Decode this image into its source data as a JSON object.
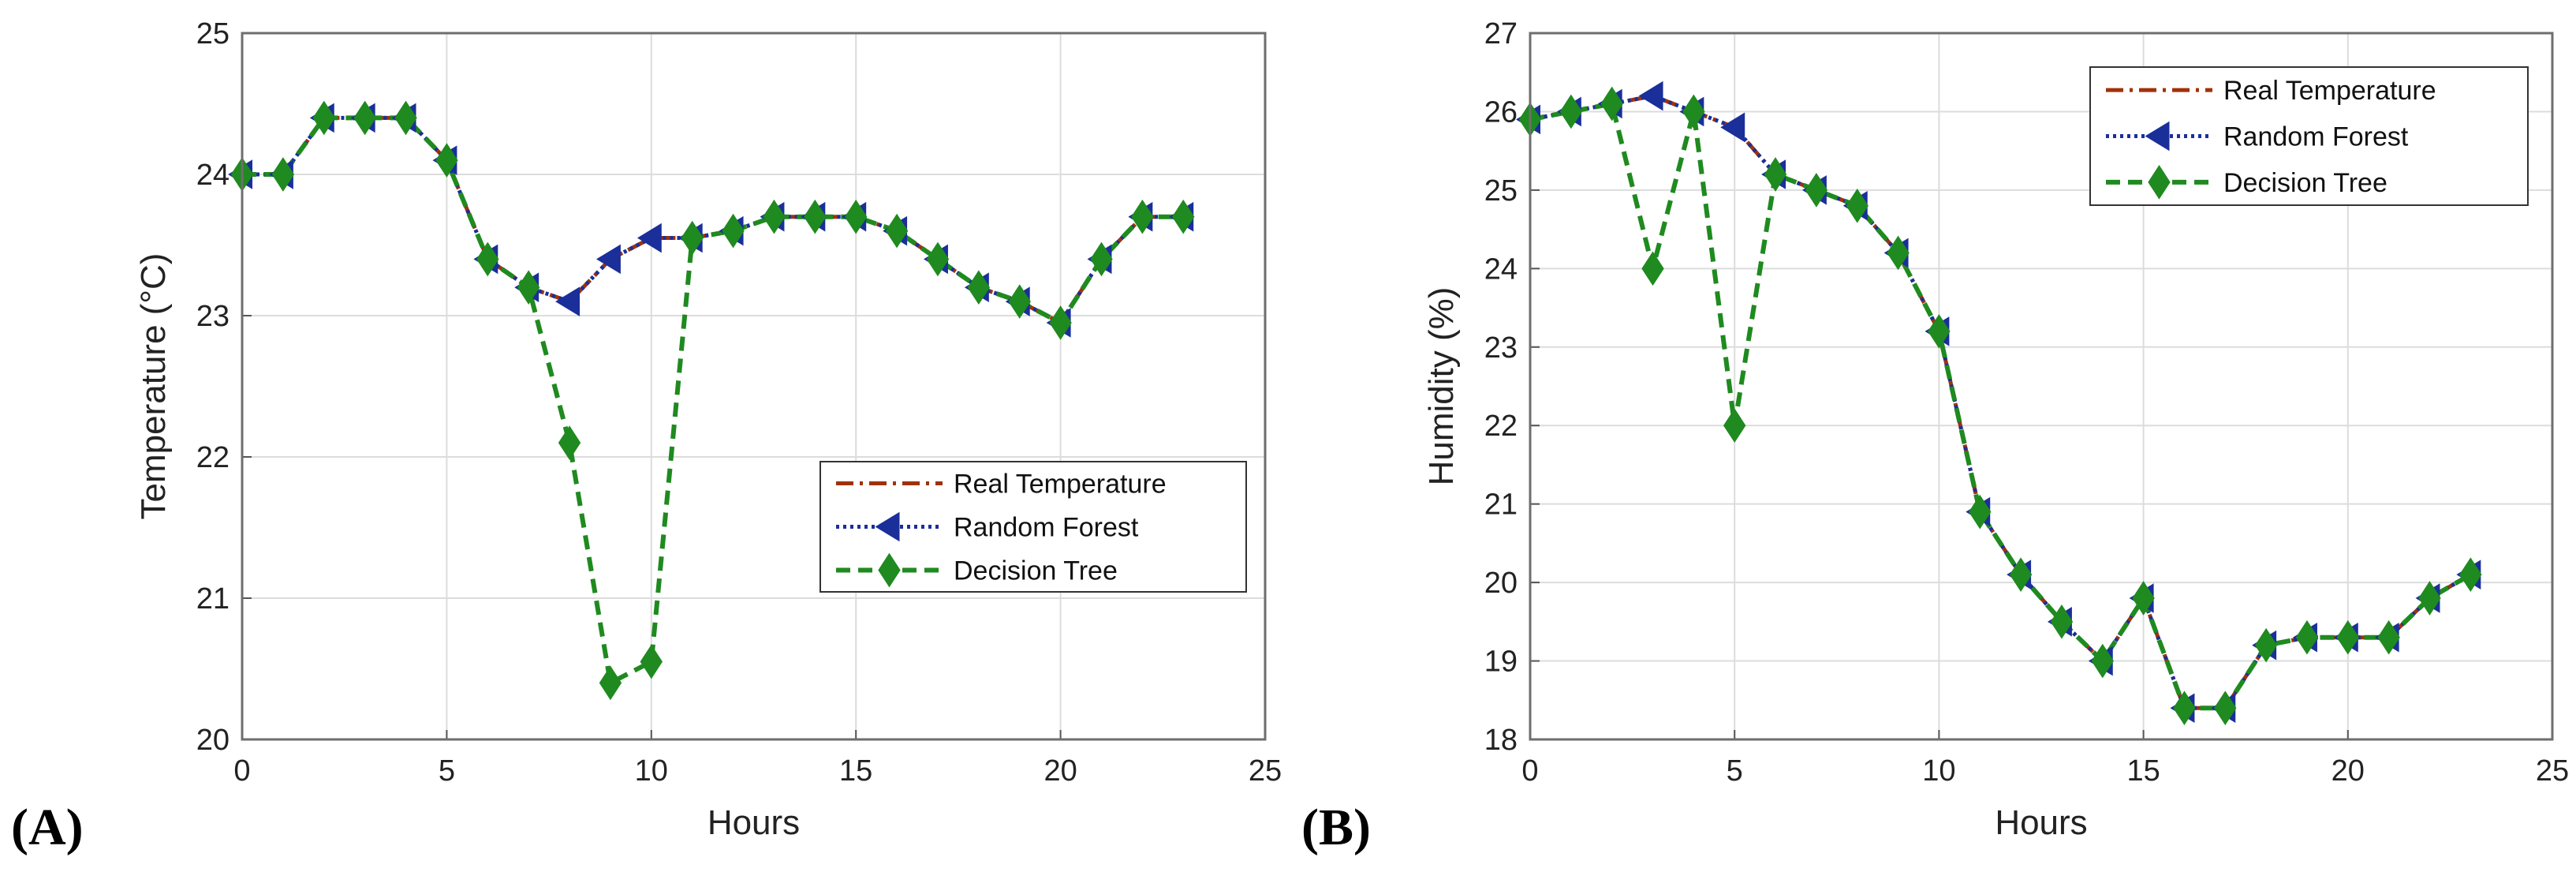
{
  "chart_data": [
    {
      "panel_label": "(A)",
      "type": "line",
      "title": "",
      "xlabel": "Hours",
      "ylabel": "Temperature (°C)",
      "xlim": [
        0,
        25
      ],
      "ylim": [
        20,
        25
      ],
      "xticks": [
        0,
        5,
        10,
        15,
        20,
        25
      ],
      "yticks": [
        20,
        21,
        22,
        23,
        24,
        25
      ],
      "grid": true,
      "legend_position": "lower-right",
      "x": [
        0,
        1,
        2,
        3,
        4,
        5,
        6,
        7,
        8,
        9,
        10,
        11,
        12,
        13,
        14,
        15,
        16,
        17,
        18,
        19,
        20,
        21,
        22,
        23
      ],
      "series": [
        {
          "name": "Real Temperature",
          "color": "#a0320a",
          "style": "dash-dot",
          "marker": "none",
          "values": [
            24.0,
            24.0,
            24.4,
            24.4,
            24.4,
            24.1,
            23.4,
            23.2,
            23.1,
            23.4,
            23.55,
            23.55,
            23.6,
            23.7,
            23.7,
            23.7,
            23.6,
            23.4,
            23.2,
            23.1,
            22.95,
            23.4,
            23.7,
            23.7
          ]
        },
        {
          "name": "Random Forest",
          "color": "#1a2f9a",
          "style": "dotted",
          "marker": "triangle-left",
          "values": [
            24.0,
            24.0,
            24.4,
            24.4,
            24.4,
            24.1,
            23.4,
            23.2,
            23.1,
            23.4,
            23.55,
            23.55,
            23.6,
            23.7,
            23.7,
            23.7,
            23.6,
            23.4,
            23.2,
            23.1,
            22.95,
            23.4,
            23.7,
            23.7
          ]
        },
        {
          "name": "Decision Tree",
          "color": "#1f8a1f",
          "style": "dashed",
          "marker": "diamond",
          "values": [
            24.0,
            24.0,
            24.4,
            24.4,
            24.4,
            24.1,
            23.4,
            23.2,
            22.1,
            20.4,
            20.55,
            23.55,
            23.6,
            23.7,
            23.7,
            23.7,
            23.6,
            23.4,
            23.2,
            23.1,
            22.95,
            23.4,
            23.7,
            23.7
          ]
        }
      ]
    },
    {
      "panel_label": "(B)",
      "type": "line",
      "title": "",
      "xlabel": "Hours",
      "ylabel": "Humidity (%)",
      "xlim": [
        0,
        25
      ],
      "ylim": [
        18,
        27
      ],
      "xticks": [
        0,
        5,
        10,
        15,
        20,
        25
      ],
      "yticks": [
        18,
        19,
        20,
        21,
        22,
        23,
        24,
        25,
        26,
        27
      ],
      "grid": true,
      "legend_position": "top-right",
      "x": [
        0,
        1,
        2,
        3,
        4,
        5,
        6,
        7,
        8,
        9,
        10,
        11,
        12,
        13,
        14,
        15,
        16,
        17,
        18,
        19,
        20,
        21,
        22,
        23
      ],
      "series": [
        {
          "name": "Real Temperature",
          "color": "#a0320a",
          "style": "dash-dot",
          "marker": "none",
          "values": [
            25.9,
            26.0,
            26.1,
            26.2,
            26.0,
            25.8,
            25.2,
            25.0,
            24.8,
            24.2,
            23.2,
            20.9,
            20.1,
            19.5,
            19.0,
            19.8,
            18.4,
            18.4,
            19.2,
            19.3,
            19.3,
            19.3,
            19.8,
            20.1
          ]
        },
        {
          "name": "Random Forest",
          "color": "#1a2f9a",
          "style": "dotted",
          "marker": "triangle-left",
          "values": [
            25.9,
            26.0,
            26.1,
            26.2,
            26.0,
            25.8,
            25.2,
            25.0,
            24.8,
            24.2,
            23.2,
            20.9,
            20.1,
            19.5,
            19.0,
            19.8,
            18.4,
            18.4,
            19.2,
            19.3,
            19.3,
            19.3,
            19.8,
            20.1
          ]
        },
        {
          "name": "Decision Tree",
          "color": "#1f8a1f",
          "style": "dashed",
          "marker": "diamond",
          "values": [
            25.9,
            26.0,
            26.1,
            24.0,
            26.0,
            22.0,
            25.2,
            25.0,
            24.8,
            24.2,
            23.2,
            20.9,
            20.1,
            19.5,
            19.0,
            19.8,
            18.4,
            18.4,
            19.2,
            19.3,
            19.3,
            19.3,
            19.8,
            20.1
          ]
        }
      ]
    }
  ]
}
